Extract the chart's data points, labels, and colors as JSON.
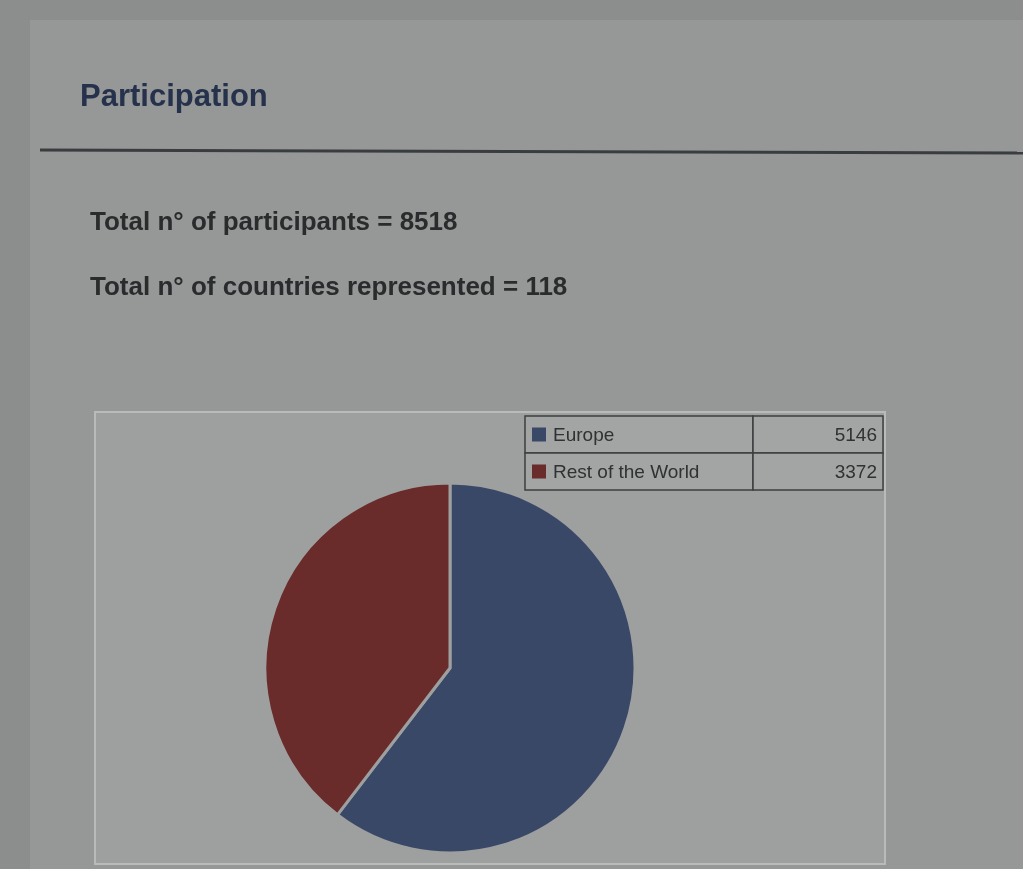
{
  "chart_data": {
    "type": "pie",
    "title": "Participation",
    "subtitle": "Total n° of participants = 8518",
    "annotations": [
      "Total n° of countries represented = 118"
    ],
    "categories": [
      "Europe",
      "Rest of the World"
    ],
    "values": [
      5146,
      3372
    ],
    "colors": [
      "#3a4868",
      "#6a2b2b"
    ],
    "data_labels": true,
    "legend": "top right"
  }
}
